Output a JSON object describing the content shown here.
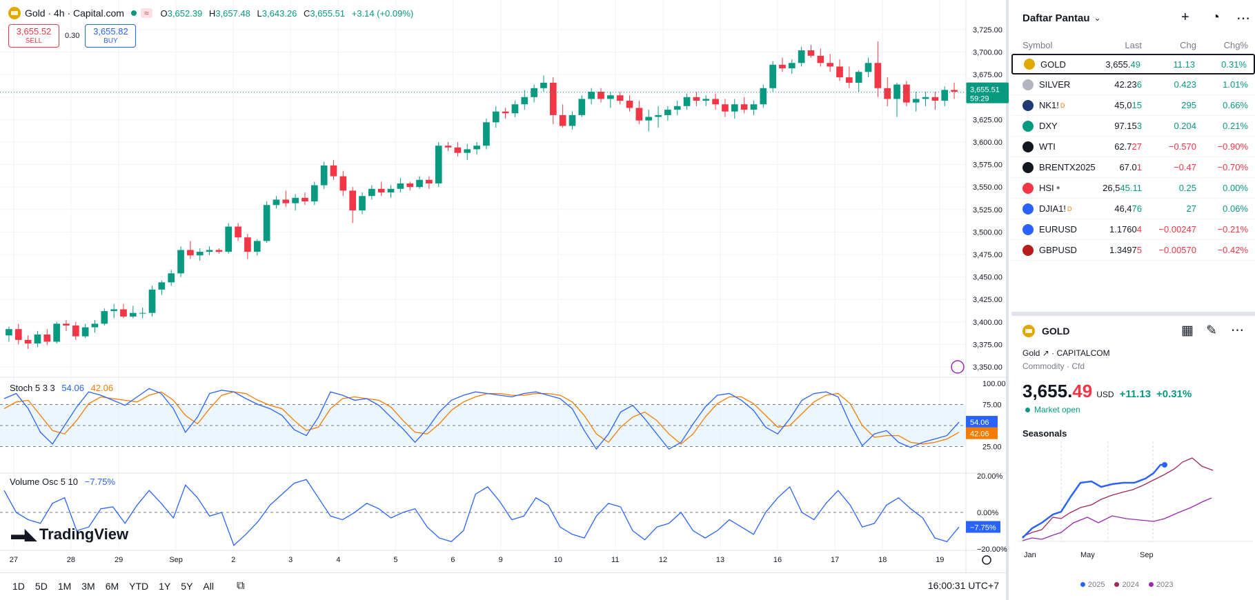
{
  "header": {
    "symbol_title": "Gold · 4h · Capital.com",
    "wave_badge": "≈",
    "ohlc": {
      "o_label": "O",
      "o": "3,652.39",
      "h_label": "H",
      "h": "3,657.48",
      "l_label": "L",
      "l": "3,643.26",
      "c_label": "C",
      "c": "3,655.51",
      "change": "+3.14 (+0.09%)"
    },
    "sell_price": "3,655.52",
    "sell_label": "SELL",
    "spread": "0.30",
    "buy_price": "3,655.82",
    "buy_label": "BUY"
  },
  "price_axis": {
    "ticks": [
      "3,725.00",
      "3,700.00",
      "3,675.00",
      "3,650.00",
      "3,625.00",
      "3,600.00",
      "3,575.00",
      "3,550.00",
      "3,525.00",
      "3,500.00",
      "3,475.00",
      "3,450.00",
      "3,425.00",
      "3,400.00",
      "3,375.00",
      "3,350.00"
    ],
    "current_price": "3,655.51",
    "countdown": "59:29"
  },
  "stoch": {
    "title": "Stoch 5 3 3",
    "k": "54.06",
    "d": "42.06",
    "ticks": [
      "100.00",
      "75.00",
      "25.00"
    ],
    "k_label": "54.06",
    "d_label": "42.06"
  },
  "volosc": {
    "title": "Volume Osc 5 10",
    "value": "−7.75%",
    "ticks": [
      "20.00%",
      "0.00%",
      "−20.00%"
    ],
    "value_label": "−7.75%"
  },
  "time_axis": [
    "27",
    "28",
    "29",
    "Sep",
    "2",
    "3",
    "4",
    "5",
    "6",
    "9",
    "10",
    "11",
    "12",
    "13",
    "16",
    "17",
    "18",
    "19"
  ],
  "logo": "TradingView",
  "timeframes": [
    "1D",
    "5D",
    "1M",
    "3M",
    "6M",
    "YTD",
    "1Y",
    "5Y",
    "All"
  ],
  "clock": "16:00:31 UTC+7",
  "chart_data": {
    "type": "candlestick",
    "candles_ohlc": [
      [
        3385,
        3395,
        3378,
        3392
      ],
      [
        3392,
        3398,
        3375,
        3380
      ],
      [
        3380,
        3385,
        3370,
        3376
      ],
      [
        3376,
        3390,
        3372,
        3386
      ],
      [
        3386,
        3392,
        3374,
        3378
      ],
      [
        3378,
        3400,
        3376,
        3398
      ],
      [
        3398,
        3402,
        3390,
        3396
      ],
      [
        3396,
        3400,
        3380,
        3384
      ],
      [
        3384,
        3398,
        3382,
        3394
      ],
      [
        3394,
        3402,
        3388,
        3398
      ],
      [
        3398,
        3415,
        3396,
        3412
      ],
      [
        3412,
        3420,
        3404,
        3414
      ],
      [
        3414,
        3420,
        3404,
        3406
      ],
      [
        3406,
        3418,
        3404,
        3410
      ],
      [
        3410,
        3416,
        3404,
        3410
      ],
      [
        3410,
        3440,
        3406,
        3436
      ],
      [
        3436,
        3446,
        3430,
        3444
      ],
      [
        3444,
        3458,
        3440,
        3454
      ],
      [
        3454,
        3484,
        3450,
        3480
      ],
      [
        3480,
        3490,
        3470,
        3474
      ],
      [
        3474,
        3482,
        3468,
        3478
      ],
      [
        3478,
        3484,
        3474,
        3480
      ],
      [
        3480,
        3482,
        3476,
        3478
      ],
      [
        3478,
        3510,
        3476,
        3506
      ],
      [
        3506,
        3510,
        3490,
        3494
      ],
      [
        3494,
        3498,
        3470,
        3478
      ],
      [
        3478,
        3492,
        3474,
        3490
      ],
      [
        3490,
        3534,
        3488,
        3530
      ],
      [
        3530,
        3540,
        3526,
        3536
      ],
      [
        3536,
        3546,
        3528,
        3532
      ],
      [
        3532,
        3542,
        3524,
        3538
      ],
      [
        3538,
        3544,
        3530,
        3534
      ],
      [
        3534,
        3556,
        3530,
        3552
      ],
      [
        3552,
        3578,
        3548,
        3574
      ],
      [
        3574,
        3580,
        3558,
        3562
      ],
      [
        3562,
        3568,
        3540,
        3546
      ],
      [
        3546,
        3550,
        3510,
        3524
      ],
      [
        3524,
        3544,
        3520,
        3540
      ],
      [
        3540,
        3552,
        3536,
        3548
      ],
      [
        3548,
        3556,
        3540,
        3544
      ],
      [
        3544,
        3552,
        3538,
        3548
      ],
      [
        3548,
        3560,
        3544,
        3554
      ],
      [
        3554,
        3556,
        3546,
        3550
      ],
      [
        3550,
        3562,
        3548,
        3558
      ],
      [
        3558,
        3562,
        3548,
        3554
      ],
      [
        3554,
        3600,
        3550,
        3596
      ],
      [
        3596,
        3600,
        3590,
        3594
      ],
      [
        3594,
        3600,
        3584,
        3588
      ],
      [
        3588,
        3598,
        3580,
        3592
      ],
      [
        3592,
        3600,
        3586,
        3596
      ],
      [
        3596,
        3626,
        3592,
        3622
      ],
      [
        3622,
        3640,
        3616,
        3634
      ],
      [
        3634,
        3638,
        3626,
        3632
      ],
      [
        3632,
        3646,
        3628,
        3642
      ],
      [
        3642,
        3658,
        3636,
        3650
      ],
      [
        3650,
        3664,
        3644,
        3660
      ],
      [
        3660,
        3674,
        3656,
        3666
      ],
      [
        3666,
        3672,
        3620,
        3630
      ],
      [
        3630,
        3642,
        3616,
        3618
      ],
      [
        3618,
        3634,
        3614,
        3630
      ],
      [
        3630,
        3652,
        3628,
        3648
      ],
      [
        3648,
        3660,
        3642,
        3656
      ],
      [
        3656,
        3660,
        3644,
        3648
      ],
      [
        3648,
        3656,
        3638,
        3652
      ],
      [
        3652,
        3656,
        3642,
        3646
      ],
      [
        3646,
        3652,
        3634,
        3638
      ],
      [
        3638,
        3646,
        3620,
        3624
      ],
      [
        3624,
        3636,
        3612,
        3628
      ],
      [
        3628,
        3640,
        3616,
        3630
      ],
      [
        3630,
        3640,
        3624,
        3636
      ],
      [
        3636,
        3646,
        3630,
        3640
      ],
      [
        3640,
        3654,
        3636,
        3650
      ],
      [
        3650,
        3656,
        3640,
        3646
      ],
      [
        3646,
        3652,
        3640,
        3648
      ],
      [
        3648,
        3654,
        3636,
        3642
      ],
      [
        3642,
        3648,
        3628,
        3634
      ],
      [
        3634,
        3648,
        3626,
        3642
      ],
      [
        3642,
        3650,
        3632,
        3636
      ],
      [
        3636,
        3646,
        3630,
        3642
      ],
      [
        3642,
        3664,
        3638,
        3660
      ],
      [
        3660,
        3690,
        3656,
        3686
      ],
      [
        3686,
        3694,
        3678,
        3682
      ],
      [
        3682,
        3692,
        3676,
        3688
      ],
      [
        3688,
        3706,
        3684,
        3702
      ],
      [
        3702,
        3708,
        3694,
        3696
      ],
      [
        3696,
        3704,
        3684,
        3688
      ],
      [
        3688,
        3698,
        3678,
        3684
      ],
      [
        3684,
        3692,
        3668,
        3672
      ],
      [
        3672,
        3684,
        3660,
        3666
      ],
      [
        3666,
        3680,
        3656,
        3678
      ],
      [
        3678,
        3694,
        3672,
        3688
      ],
      [
        3688,
        3712,
        3650,
        3660
      ],
      [
        3660,
        3672,
        3640,
        3648
      ],
      [
        3648,
        3666,
        3628,
        3664
      ],
      [
        3664,
        3668,
        3640,
        3644
      ],
      [
        3644,
        3656,
        3634,
        3648
      ],
      [
        3648,
        3656,
        3640,
        3650
      ],
      [
        3650,
        3656,
        3636,
        3646
      ],
      [
        3646,
        3662,
        3640,
        3658
      ],
      [
        3658,
        3666,
        3648,
        3656
      ]
    ],
    "stoch_k": [
      82,
      88,
      70,
      42,
      28,
      50,
      72,
      90,
      86,
      80,
      74,
      84,
      94,
      88,
      70,
      42,
      60,
      88,
      92,
      90,
      82,
      75,
      70,
      62,
      45,
      38,
      60,
      90,
      86,
      80,
      82,
      74,
      60,
      46,
      30,
      46,
      66,
      80,
      86,
      90,
      88,
      86,
      84,
      88,
      90,
      86,
      82,
      70,
      44,
      22,
      40,
      66,
      74,
      58,
      40,
      22,
      30,
      52,
      72,
      86,
      88,
      80,
      68,
      48,
      40,
      58,
      80,
      88,
      90,
      84,
      52,
      26,
      40,
      44,
      30,
      24,
      30,
      34,
      38,
      54
    ],
    "stoch_d": [
      70,
      78,
      80,
      62,
      44,
      40,
      56,
      76,
      84,
      82,
      80,
      78,
      86,
      90,
      80,
      62,
      52,
      70,
      86,
      90,
      88,
      80,
      74,
      70,
      56,
      44,
      48,
      70,
      82,
      84,
      82,
      80,
      72,
      56,
      42,
      40,
      52,
      68,
      78,
      84,
      88,
      88,
      86,
      86,
      88,
      88,
      86,
      78,
      62,
      40,
      30,
      48,
      60,
      66,
      56,
      40,
      28,
      40,
      60,
      76,
      84,
      84,
      76,
      62,
      48,
      50,
      64,
      78,
      86,
      88,
      76,
      50,
      36,
      38,
      38,
      30,
      28,
      30,
      34,
      42
    ],
    "vol_osc": [
      12,
      0,
      -4,
      -6,
      5,
      8,
      -10,
      -8,
      2,
      3,
      -6,
      4,
      12,
      5,
      -3,
      15,
      8,
      -2,
      0,
      -18,
      -12,
      -5,
      4,
      10,
      16,
      18,
      8,
      -2,
      -4,
      0,
      5,
      2,
      -3,
      0,
      2,
      -8,
      -14,
      -16,
      -10,
      10,
      14,
      6,
      -4,
      -2,
      8,
      4,
      -8,
      -12,
      -14,
      -2,
      5,
      3,
      -10,
      -15,
      -8,
      -6,
      0,
      -10,
      -14,
      -10,
      -4,
      -8,
      -12,
      0,
      8,
      14,
      0,
      -4,
      5,
      12,
      4,
      -8,
      -6,
      4,
      8,
      2,
      -3,
      -14,
      -16,
      -8
    ],
    "stoch_range": [
      0,
      100
    ],
    "vol_osc_range": [
      -20,
      20
    ],
    "price_range": [
      3340,
      3735
    ]
  },
  "watchlist": {
    "title": "Daftar Pantau",
    "columns": {
      "symbol": "Symbol",
      "last": "Last",
      "chg": "Chg",
      "chgp": "Chg%"
    },
    "rows": [
      {
        "sym": "GOLD",
        "last_a": "3,655.",
        "last_b": "49",
        "chg": "11.13",
        "chgp": "0.31%",
        "dir": "pos",
        "icon": "#e0a800",
        "iconText": "",
        "sup": ""
      },
      {
        "sym": "SILVER",
        "last_a": "42.23",
        "last_b": "6",
        "chg": "0.423",
        "chgp": "1.01%",
        "dir": "pos",
        "icon": "#b2b5be",
        "iconText": "",
        "sup": ""
      },
      {
        "sym": "NK1!",
        "last_a": "45,0",
        "last_b": "15",
        "chg": "295",
        "chgp": "0.66%",
        "dir": "pos",
        "icon": "#1e3a70",
        "iconText": "225",
        "sup": "D"
      },
      {
        "sym": "DXY",
        "last_a": "97.15",
        "last_b": "3",
        "chg": "0.204",
        "chgp": "0.21%",
        "dir": "pos",
        "icon": "#089981",
        "iconText": "$",
        "sup": ""
      },
      {
        "sym": "WTI",
        "last_a": "62.7",
        "last_b": "27",
        "chg": "−0.570",
        "chgp": "−0.90%",
        "dir": "neg",
        "icon": "#131722",
        "iconText": "",
        "sup": ""
      },
      {
        "sym": "BRENTX2025",
        "last_a": "67.0",
        "last_b": "1",
        "chg": "−0.47",
        "chgp": "−0.70%",
        "dir": "neg",
        "icon": "#131722",
        "iconText": "",
        "sup": ""
      },
      {
        "sym": "HSI",
        "last_a": "26,5",
        "last_b": "45.11",
        "chg": "0.25",
        "chgp": "0.00%",
        "dir": "pos",
        "icon": "#f23645",
        "iconText": "",
        "sup": "•"
      },
      {
        "sym": "DJIA1!",
        "last_a": "46,4",
        "last_b": "76",
        "chg": "27",
        "chgp": "0.06%",
        "dir": "pos",
        "icon": "#2962ff",
        "iconText": "",
        "sup": "D"
      },
      {
        "sym": "EURUSD",
        "last_a": "1.1760",
        "last_b": "4",
        "chg": "−0.00247",
        "chgp": "−0.21%",
        "dir": "neg",
        "icon": "#2962ff",
        "iconText": "",
        "sup": ""
      },
      {
        "sym": "GBPUSD",
        "last_a": "1.3497",
        "last_b": "5",
        "chg": "−0.00570",
        "chgp": "−0.42%",
        "dir": "neg",
        "icon": "#b71c1c",
        "iconText": "",
        "sup": ""
      }
    ]
  },
  "details": {
    "symbol": "GOLD",
    "name": "Gold",
    "exchange": "· CAPITALCOM",
    "category": "Commodity · Cfd",
    "price_a": "3,655.",
    "price_b": "49",
    "currency": "USD",
    "change": "+11.13",
    "change_pct": "+0.31%",
    "market_status": "Market open",
    "seasonals_title": "Seasonals",
    "season_months": [
      "Jan",
      "May",
      "Sep"
    ],
    "season_legend": [
      {
        "label": "2025",
        "color": "#2962ff"
      },
      {
        "label": "2024",
        "color": "#a0285a"
      },
      {
        "label": "2023",
        "color": "#9c27b0"
      }
    ]
  },
  "colors": {
    "up": "#089981",
    "down": "#f23645",
    "stoch_k": "#2962ff",
    "stoch_d": "#f57c00"
  }
}
